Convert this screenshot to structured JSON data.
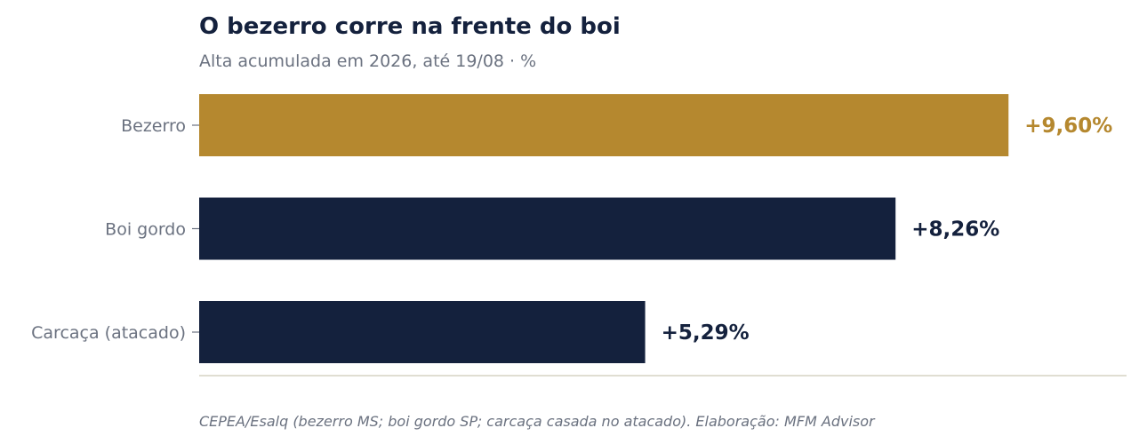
{
  "chart_data": {
    "type": "bar",
    "orientation": "horizontal",
    "title": "O bezerro corre na frente do boi",
    "subtitle": "Alta acumulada em 2026, até 19/08 · %",
    "categories": [
      "Bezerro",
      "Boi gordo",
      "Carcaça (atacado)"
    ],
    "values": [
      9.6,
      8.26,
      5.29
    ],
    "value_labels": [
      "+9,60%",
      "+8,26%",
      "+5,29%"
    ],
    "colors": [
      "#b5882f",
      "#14213d",
      "#14213d"
    ],
    "xlim": [
      0,
      11
    ],
    "grid": false,
    "source": "CEPEA/Esalq (bezerro MS; boi gordo SP; carcaça casada no atacado). Elaboração: MFM Advisor"
  },
  "style": {
    "axis_line_color": "#d6d3c4",
    "tick_color": "#6b7280"
  }
}
